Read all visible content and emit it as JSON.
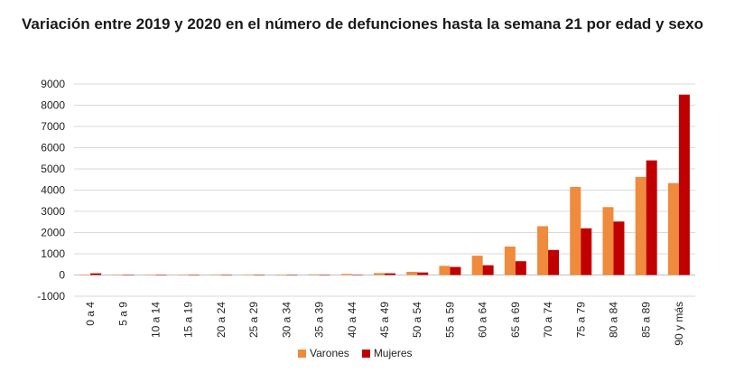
{
  "colors": {
    "Varones": "#F08A3C",
    "Mujeres": "#C00000",
    "grid": "#d9d9d9",
    "axis": "#bfbfbf"
  },
  "chart_data": {
    "type": "bar",
    "title": "Variación entre 2019 y 2020 en el número de defunciones hasta la semana 21 por edad y sexo",
    "categories": [
      "0 a 4",
      "5 a 9",
      "10 a 14",
      "15 a 19",
      "20 a 24",
      "25 a 29",
      "30 a 34",
      "35 a 39",
      "40 a 44",
      "45 a 49",
      "50 a 54",
      "55 a 59",
      "60 a 64",
      "65 a 69",
      "70 a 74",
      "75 a 79",
      "80 a 84",
      "85 a 89",
      "90 y más"
    ],
    "series": [
      {
        "name": "Varones",
        "values": [
          20,
          -5,
          -20,
          -10,
          -5,
          -15,
          -25,
          30,
          50,
          90,
          150,
          430,
          910,
          1340,
          2300,
          4150,
          3200,
          4620,
          4330
        ]
      },
      {
        "name": "Mujeres",
        "values": [
          80,
          10,
          -10,
          -5,
          0,
          -10,
          -20,
          10,
          20,
          80,
          120,
          380,
          460,
          650,
          1180,
          2200,
          2520,
          5400,
          8500
        ]
      }
    ],
    "ylim": [
      -1000,
      9000
    ],
    "yticks": [
      -1000,
      0,
      1000,
      2000,
      3000,
      4000,
      5000,
      6000,
      7000,
      8000,
      9000
    ],
    "grid": true,
    "legend": "bottom-center"
  }
}
